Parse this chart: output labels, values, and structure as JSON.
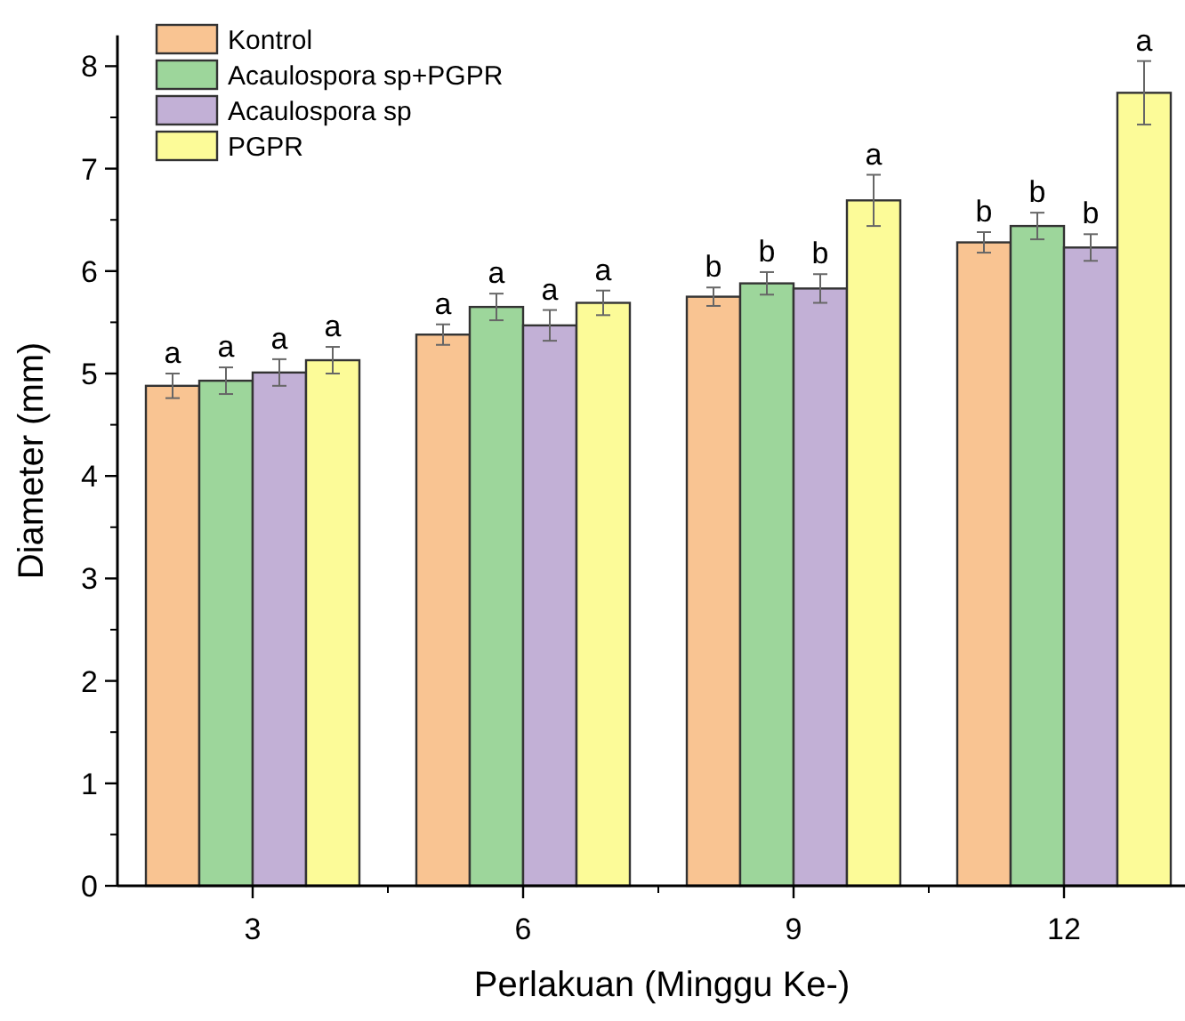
{
  "chart_data": {
    "type": "bar",
    "xlabel": "Perlakuan (Minggu Ke-)",
    "ylabel": "Diameter (mm)",
    "categories": [
      "3",
      "6",
      "9",
      "12"
    ],
    "ylim": [
      0,
      8.3
    ],
    "yticks": [
      0,
      1,
      2,
      3,
      4,
      5,
      6,
      7,
      8
    ],
    "grid": false,
    "legend": "top left",
    "series": [
      {
        "name": "Kontrol",
        "color": "#f9c492",
        "values": [
          4.88,
          5.38,
          5.75,
          6.28
        ],
        "errors": [
          0.12,
          0.1,
          0.09,
          0.1
        ],
        "value_labels": [
          "a",
          "a",
          "b",
          "b"
        ]
      },
      {
        "name": "Acaulospora sp+PGPR",
        "color": "#9dd69b",
        "values": [
          4.93,
          5.65,
          5.88,
          6.44
        ],
        "errors": [
          0.13,
          0.13,
          0.11,
          0.13
        ],
        "value_labels": [
          "a",
          "a",
          "b",
          "b"
        ]
      },
      {
        "name": "Acaulospora sp",
        "color": "#c2b0d6",
        "values": [
          5.01,
          5.47,
          5.83,
          6.23
        ],
        "errors": [
          0.13,
          0.15,
          0.14,
          0.13
        ],
        "value_labels": [
          "a",
          "a",
          "b",
          "b"
        ]
      },
      {
        "name": "PGPR",
        "color": "#fcfb98",
        "values": [
          5.13,
          5.69,
          6.69,
          7.74
        ],
        "errors": [
          0.13,
          0.12,
          0.25,
          0.31
        ],
        "value_labels": [
          "a",
          "a",
          "a",
          "a"
        ]
      }
    ]
  }
}
